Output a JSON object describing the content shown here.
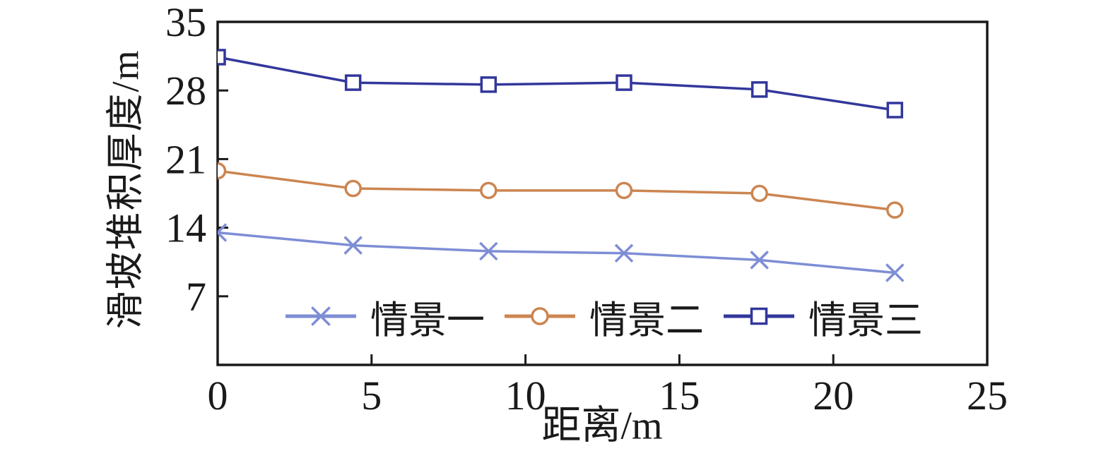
{
  "chart_data": {
    "type": "line",
    "title": "",
    "xlabel": "距离/m",
    "ylabel": "滑坡堆积厚度/m",
    "xlim": [
      0,
      25
    ],
    "ylim": [
      0,
      35
    ],
    "xticks": [
      0,
      5,
      10,
      15,
      20,
      25
    ],
    "yticks": [
      7,
      14,
      21,
      28,
      35
    ],
    "grid": false,
    "frame": "box",
    "tick_direction": "in",
    "legend_position": "inside-bottom",
    "axis_color": "#1a1a1a",
    "background_color": "#ffffff",
    "x": [
      0,
      4.4,
      8.8,
      13.2,
      17.6,
      22.0
    ],
    "series": [
      {
        "name": "情景一",
        "marker": "x",
        "color": "#7e8ed5",
        "values": [
          13.5,
          12.2,
          11.6,
          11.4,
          10.7,
          9.4
        ]
      },
      {
        "name": "情景二",
        "marker": "circle",
        "color": "#cc8551",
        "values": [
          19.8,
          18.0,
          17.8,
          17.8,
          17.5,
          15.8
        ]
      },
      {
        "name": "情景三",
        "marker": "square",
        "color": "#32379b",
        "values": [
          31.4,
          28.8,
          28.6,
          28.8,
          28.1,
          26.0
        ]
      }
    ]
  }
}
